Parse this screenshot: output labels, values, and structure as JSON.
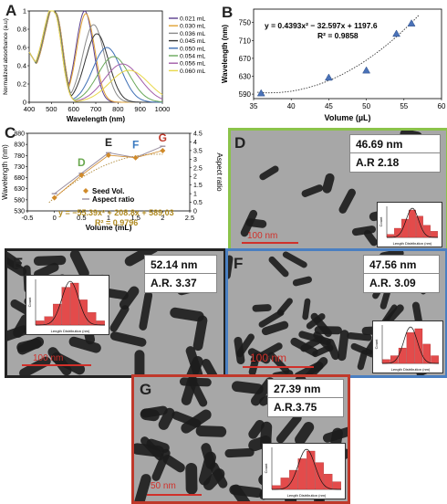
{
  "panels": {
    "A": "A",
    "B": "B",
    "C": "C",
    "D": "D",
    "E": "E",
    "F": "F",
    "G": "G"
  },
  "chart_data": [
    {
      "id": "A",
      "type": "line",
      "xlabel": "Wavelength (nm)",
      "ylabel": "Normalized absorbance (a.u)",
      "xlim": [
        400,
        1000
      ],
      "ylim": [
        0,
        1.0
      ],
      "xticks": [
        400,
        500,
        600,
        700,
        800,
        900,
        1000
      ],
      "yticks": [
        0,
        0.2,
        0.4,
        0.6,
        0.8,
        1.0
      ],
      "legend_position": "right",
      "series": [
        {
          "name": "0.021 mL",
          "color": "#5b3f8f",
          "peak1": 520,
          "peak2": 650,
          "h2": 1.0
        },
        {
          "name": "0.030 mL",
          "color": "#e0a233",
          "peak1": 520,
          "peak2": 655,
          "h2": 0.97
        },
        {
          "name": "0.036 mL",
          "color": "#8a8a8a",
          "peak1": 518,
          "peak2": 690,
          "h2": 0.85
        },
        {
          "name": "0.045 mL",
          "color": "#333333",
          "peak1": 516,
          "peak2": 705,
          "h2": 0.75
        },
        {
          "name": "0.050 mL",
          "color": "#3e6fb5",
          "peak1": 515,
          "peak2": 750,
          "h2": 0.6
        },
        {
          "name": "0.054 mL",
          "color": "#6aa85a",
          "peak1": 515,
          "peak2": 780,
          "h2": 0.5
        },
        {
          "name": "0.056 mL",
          "color": "#a25ca8",
          "peak1": 514,
          "peak2": 820,
          "h2": 0.42
        },
        {
          "name": "0.060 mL",
          "color": "#e8d84a",
          "peak1": 514,
          "peak2": 850,
          "h2": 0.35
        }
      ]
    },
    {
      "id": "B",
      "type": "scatter",
      "xlabel": "Volume (µL)",
      "ylabel": "Wavelength (nm)",
      "xlim": [
        35,
        60
      ],
      "ylim": [
        580,
        780
      ],
      "xticks": [
        35,
        40,
        45,
        50,
        55,
        60
      ],
      "yticks": [
        590,
        630,
        670,
        710,
        750
      ],
      "x": [
        36,
        45,
        50,
        54,
        56
      ],
      "y": [
        592,
        627,
        643,
        725,
        748
      ],
      "equation": "y = 0.4393x² − 32.597x + 1197.6",
      "r2": "R² = 0.9858",
      "trend": {
        "a": 0.4393,
        "b": -32.597,
        "c": 1197.6
      }
    },
    {
      "id": "C",
      "type": "line",
      "xlabel": "Volume (mL)",
      "ylabel": "Wavelength (nm)",
      "ylabel2": "Aspect ratio",
      "xlim": [
        -0.5,
        2.5
      ],
      "ylim": [
        530,
        880
      ],
      "ylim2": [
        0,
        4.5
      ],
      "xticks": [
        -0.5,
        0,
        0.5,
        1,
        1.5,
        2,
        2.5
      ],
      "yticks": [
        530,
        580,
        630,
        680,
        730,
        780,
        830,
        880
      ],
      "yticks2": [
        0,
        0.5,
        1,
        1.5,
        2,
        2.5,
        3,
        3.5,
        4,
        4.5
      ],
      "series": [
        {
          "name": "Seed Vol.",
          "color": "#d08a2a",
          "x": [
            0,
            0.5,
            1,
            1.5,
            2
          ],
          "y": [
            589,
            691,
            781,
            770,
            802
          ]
        },
        {
          "name": "Aspect ratio",
          "color": "#9a8fa0",
          "x": [
            0,
            0.5,
            1,
            1.5,
            2
          ],
          "y2": [
            1.0,
            2.18,
            3.37,
            3.09,
            3.75
          ]
        }
      ],
      "point_labels": [
        {
          "text": "D",
          "x": 0.5,
          "color": "#6aa84f"
        },
        {
          "text": "E",
          "x": 1,
          "color": "#222222"
        },
        {
          "text": "F",
          "x": 1.5,
          "color": "#3a7ac0"
        },
        {
          "text": "G",
          "x": 2,
          "color": "#c0392b"
        }
      ],
      "equation": "y = −55.39x² + 208.8x + 589.03",
      "r2": "R² = 0.9796",
      "trend": {
        "a": -55.39,
        "b": 208.8,
        "c": 589.03
      }
    }
  ],
  "tem": {
    "D": {
      "size": "46.69 nm",
      "ar": "A.R 2.18",
      "scale": "100 nm",
      "border": "#8bc34a"
    },
    "E": {
      "size": "52.14 nm",
      "ar": "A.R. 3.37",
      "scale": "100 nm",
      "border": "#222222"
    },
    "F": {
      "size": "47.56 nm",
      "ar": "A.R. 3.09",
      "scale": "100 nm",
      "border": "#4a7fc1"
    },
    "G": {
      "size": "27.39 nm",
      "ar": "A.R.3.75",
      "scale": "50 nm",
      "border": "#c0392b"
    }
  },
  "histogram": {
    "xlabel": "Length Distribution (nm)",
    "ylabel": "Count",
    "color": "#e34b4b",
    "fit_color": "#111111"
  }
}
